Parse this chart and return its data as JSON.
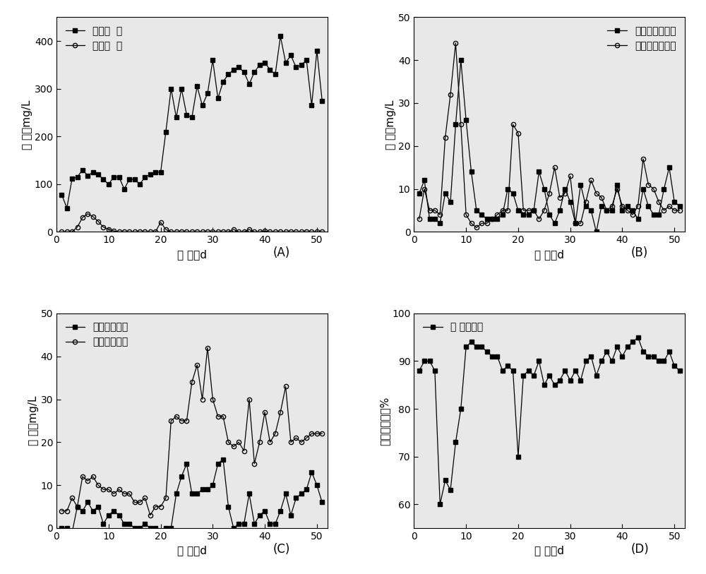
{
  "A_inlet_x": [
    1,
    2,
    3,
    4,
    5,
    6,
    7,
    8,
    9,
    10,
    11,
    12,
    13,
    14,
    15,
    16,
    17,
    18,
    19,
    20,
    21,
    22,
    23,
    24,
    25,
    26,
    27,
    28,
    29,
    30,
    31,
    32,
    33,
    34,
    35,
    36,
    37,
    38,
    39,
    40,
    41,
    42,
    43,
    44,
    45,
    46,
    47,
    48,
    49,
    50,
    51
  ],
  "A_inlet_y": [
    78,
    50,
    112,
    115,
    130,
    118,
    125,
    120,
    110,
    100,
    115,
    115,
    90,
    110,
    110,
    100,
    115,
    120,
    125,
    125,
    210,
    300,
    240,
    300,
    245,
    240,
    305,
    265,
    290,
    360,
    280,
    315,
    330,
    340,
    345,
    335,
    310,
    335,
    350,
    355,
    340,
    330,
    410,
    355,
    370,
    345,
    350,
    360,
    265,
    380,
    275
  ],
  "A_outlet_x": [
    1,
    2,
    3,
    4,
    5,
    6,
    7,
    8,
    9,
    10,
    11,
    12,
    13,
    14,
    15,
    16,
    17,
    18,
    19,
    20,
    21,
    22,
    23,
    24,
    25,
    26,
    27,
    28,
    29,
    30,
    31,
    32,
    33,
    34,
    35,
    36,
    37,
    38,
    39,
    40,
    41,
    42,
    43,
    44,
    45,
    46,
    47,
    48,
    49,
    50,
    51
  ],
  "A_outlet_y": [
    0,
    0,
    0,
    10,
    30,
    38,
    32,
    22,
    10,
    5,
    2,
    0,
    0,
    0,
    0,
    0,
    0,
    0,
    0,
    20,
    5,
    0,
    0,
    0,
    0,
    0,
    0,
    0,
    0,
    0,
    0,
    0,
    0,
    5,
    0,
    0,
    5,
    0,
    0,
    2,
    0,
    0,
    0,
    0,
    0,
    0,
    0,
    0,
    0,
    0,
    0
  ],
  "B_inlet_x": [
    1,
    2,
    3,
    4,
    5,
    6,
    7,
    8,
    9,
    10,
    11,
    12,
    13,
    14,
    15,
    16,
    17,
    18,
    19,
    20,
    21,
    22,
    23,
    24,
    25,
    26,
    27,
    28,
    29,
    30,
    31,
    32,
    33,
    34,
    35,
    36,
    37,
    38,
    39,
    40,
    41,
    42,
    43,
    44,
    45,
    46,
    47,
    48,
    49,
    50,
    51
  ],
  "B_inlet_y": [
    9,
    12,
    3,
    3,
    2,
    9,
    7,
    25,
    40,
    26,
    14,
    5,
    4,
    3,
    3,
    3,
    4,
    10,
    9,
    5,
    4,
    4,
    5,
    14,
    10,
    4,
    2,
    5,
    10,
    7,
    2,
    11,
    6,
    5,
    0,
    6,
    5,
    5,
    11,
    5,
    6,
    5,
    3,
    10,
    6,
    4,
    4,
    10,
    15,
    7,
    6
  ],
  "B_outlet_x": [
    1,
    2,
    3,
    4,
    5,
    6,
    7,
    8,
    9,
    10,
    11,
    12,
    13,
    14,
    15,
    16,
    17,
    18,
    19,
    20,
    21,
    22,
    23,
    24,
    25,
    26,
    27,
    28,
    29,
    30,
    31,
    32,
    33,
    34,
    35,
    36,
    37,
    38,
    39,
    40,
    41,
    42,
    43,
    44,
    45,
    46,
    47,
    48,
    49,
    50,
    51
  ],
  "B_outlet_y": [
    3,
    10,
    5,
    5,
    4,
    22,
    32,
    44,
    25,
    4,
    2,
    1,
    2,
    2,
    3,
    4,
    5,
    5,
    25,
    23,
    5,
    5,
    5,
    3,
    5,
    9,
    15,
    8,
    9,
    13,
    2,
    2,
    7,
    12,
    9,
    8,
    5,
    6,
    10,
    6,
    5,
    4,
    6,
    17,
    11,
    10,
    7,
    5,
    6,
    5,
    5
  ],
  "C_inlet_x": [
    1,
    2,
    3,
    4,
    5,
    6,
    7,
    8,
    9,
    10,
    11,
    12,
    13,
    14,
    15,
    16,
    17,
    18,
    19,
    20,
    21,
    22,
    23,
    24,
    25,
    26,
    27,
    28,
    29,
    30,
    31,
    32,
    33,
    34,
    35,
    36,
    37,
    38,
    39,
    40,
    41,
    42,
    43,
    44,
    45,
    46,
    47,
    48,
    49,
    50,
    51
  ],
  "C_inlet_y": [
    0,
    0,
    -1,
    5,
    4,
    6,
    4,
    5,
    1,
    3,
    4,
    3,
    1,
    1,
    0,
    0,
    1,
    0,
    0,
    -1,
    0,
    0,
    8,
    12,
    15,
    8,
    8,
    9,
    9,
    10,
    15,
    16,
    5,
    0,
    1,
    1,
    8,
    1,
    3,
    4,
    1,
    1,
    4,
    8,
    3,
    7,
    8,
    9,
    13,
    10,
    6
  ],
  "C_outlet_x": [
    1,
    2,
    3,
    4,
    5,
    6,
    7,
    8,
    9,
    10,
    11,
    12,
    13,
    14,
    15,
    16,
    17,
    18,
    19,
    20,
    21,
    22,
    23,
    24,
    25,
    26,
    27,
    28,
    29,
    30,
    31,
    32,
    33,
    34,
    35,
    36,
    37,
    38,
    39,
    40,
    41,
    42,
    43,
    44,
    45,
    46,
    47,
    48,
    49,
    50,
    51
  ],
  "C_outlet_y": [
    4,
    4,
    7,
    5,
    12,
    11,
    12,
    10,
    9,
    9,
    8,
    9,
    8,
    8,
    6,
    6,
    7,
    3,
    5,
    5,
    7,
    25,
    26,
    25,
    25,
    34,
    38,
    30,
    42,
    30,
    26,
    26,
    20,
    19,
    20,
    18,
    30,
    15,
    20,
    27,
    20,
    22,
    27,
    33,
    20,
    21,
    20,
    21,
    22,
    22,
    22
  ],
  "D_x": [
    1,
    2,
    3,
    4,
    5,
    6,
    7,
    8,
    9,
    10,
    11,
    12,
    13,
    14,
    15,
    16,
    17,
    18,
    19,
    20,
    21,
    22,
    23,
    24,
    25,
    26,
    27,
    28,
    29,
    30,
    31,
    32,
    33,
    34,
    35,
    36,
    37,
    38,
    39,
    40,
    41,
    42,
    43,
    44,
    45,
    46,
    47,
    48,
    49,
    50,
    51
  ],
  "D_y": [
    88,
    90,
    90,
    88,
    60,
    65,
    63,
    73,
    80,
    93,
    94,
    93,
    93,
    92,
    91,
    91,
    88,
    89,
    88,
    70,
    87,
    88,
    87,
    90,
    85,
    87,
    85,
    86,
    88,
    86,
    88,
    86,
    90,
    91,
    87,
    90,
    92,
    90,
    93,
    91,
    93,
    94,
    95,
    92,
    91,
    91,
    90,
    90,
    92,
    89,
    88
  ],
  "A_ylim": [
    0,
    450
  ],
  "A_yticks": [
    0,
    100,
    200,
    300,
    400
  ],
  "B_ylim": [
    0,
    50
  ],
  "B_yticks": [
    0,
    10,
    20,
    30,
    40,
    50
  ],
  "C_ylim": [
    0,
    50
  ],
  "C_yticks": [
    0,
    10,
    20,
    30,
    40,
    50
  ],
  "D_ylim": [
    55,
    100
  ],
  "D_yticks": [
    60,
    70,
    80,
    90,
    100
  ],
  "xlim": [
    0,
    52
  ],
  "xticks": [
    0,
    10,
    20,
    30,
    40,
    50
  ],
  "xlabel": "时 间，d",
  "A_ylabel": "浓 度，mg/L",
  "B_ylabel": "浓 度，mg/L",
  "C_ylabel": "浓 度，mg/L",
  "D_ylabel": "总氮去除率，%",
  "A_label1": "进水氨  氮",
  "A_label2": "出水氨  氮",
  "B_label1": "进水亚研酸盐氮",
  "B_label2": "出水亚研酸盐氮",
  "C_label1": "进水研酸盐氮",
  "C_label2": "出水研酸盐氮",
  "D_label1": "总 氮去除率",
  "panel_A": "(A)",
  "panel_B": "(B)",
  "panel_C": "(C)",
  "panel_D": "(D)",
  "bg_color": "#e8e8e8"
}
